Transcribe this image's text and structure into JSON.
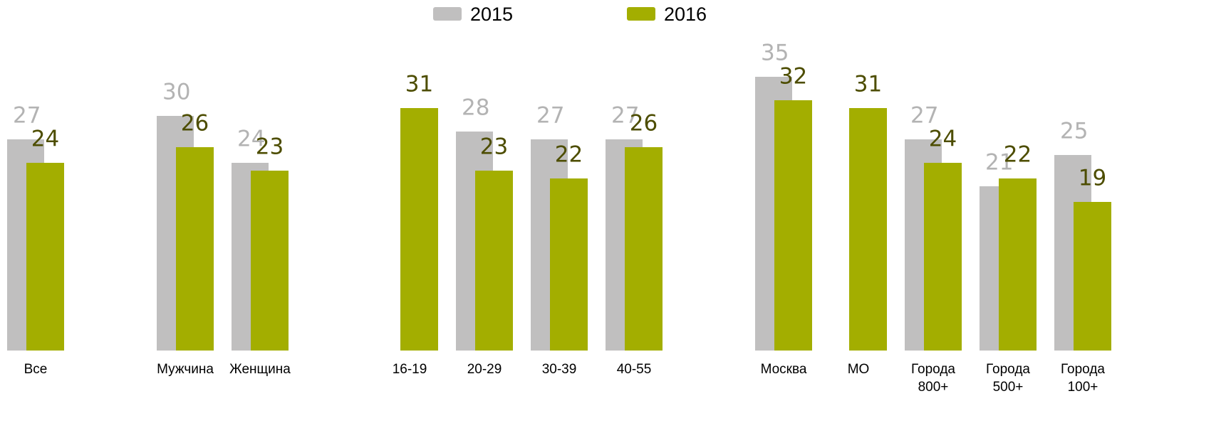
{
  "chart_data": {
    "type": "bar",
    "categories": [
      "Все",
      null,
      "Мужчина",
      "Женщина",
      null,
      "16-19",
      "20-29",
      "30-39",
      "40-55",
      null,
      "Москва",
      "МО",
      "Города 800+",
      "Города 500+",
      "Города 100+"
    ],
    "series": [
      {
        "name": "2015",
        "color": "#c0bfbf",
        "label_color": "#b3b3b3",
        "values": [
          27,
          null,
          30,
          24,
          null,
          null,
          28,
          27,
          27,
          null,
          35,
          null,
          27,
          21,
          25
        ]
      },
      {
        "name": "2016",
        "color": "#a3ae00",
        "label_color": "#4d4d00",
        "values": [
          24,
          null,
          26,
          23,
          null,
          31,
          23,
          22,
          26,
          null,
          32,
          31,
          24,
          22,
          19
        ]
      }
    ],
    "ylim": [
      0,
      40
    ],
    "legend": "top",
    "grid": false
  }
}
